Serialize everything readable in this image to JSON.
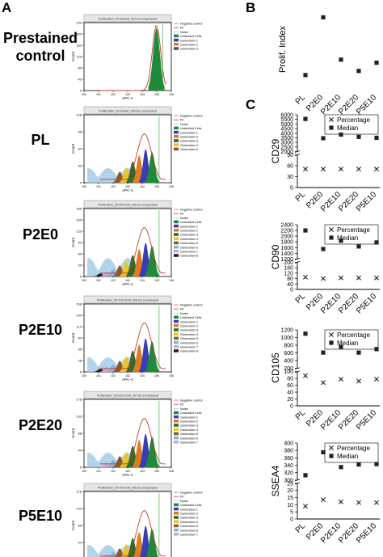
{
  "panel_letters": {
    "a": "A",
    "b": "B",
    "c": "C"
  },
  "row_labels": [
    "Prestained control",
    "PL",
    "P2E0",
    "P2E10",
    "P2E20",
    "P5E10"
  ],
  "flow": {
    "xlabel": "APC-A",
    "ylabel": "Count",
    "x_ticks": [
      "10^0",
      "10^1",
      "10^2",
      "10^3",
      "10^4",
      "10^5",
      "10^6"
    ],
    "histograms": [
      {
        "title": "Proliferation_Prestained_002.fcs compressed",
        "ymax": "240",
        "yticks": [
          "0",
          "40",
          "80",
          "120",
          "160",
          "200",
          "240"
        ],
        "legend": [
          "Negative control",
          "Fit",
          "Noise",
          "Undivided Cells",
          "Generation 1",
          "Generation 2",
          "Generation 3"
        ]
      },
      {
        "title": "Proliferation_D5 Plastic_009.fcs compressed",
        "ymax": "128",
        "yticks": [
          "0",
          "32",
          "64",
          "96",
          "128"
        ],
        "legend": [
          "Negative control",
          "Fit",
          "Noise",
          "Undivided Cells",
          "Generation 1",
          "Generation 2",
          "Generation 3",
          "Generation 4",
          "Generation 5"
        ]
      },
      {
        "title": "Proliferation_D6 D0 ECM_006.fcs compressed",
        "ymax": "180",
        "yticks": [
          "0",
          "30",
          "60",
          "90",
          "120",
          "150",
          "180"
        ],
        "legend": [
          "Negative control",
          "Fit",
          "Noise",
          "Undivided Cells",
          "Generation 1",
          "Generation 2",
          "Generation 3",
          "Generation 4",
          "Generation 5",
          "Generation 6",
          "Generation 7",
          "Generation 8"
        ]
      },
      {
        "title": "Proliferation_D5 D10 ECM_008.fcs compressed",
        "ymax": "168",
        "yticks": [
          "0",
          "28",
          "56",
          "84",
          "112",
          "140",
          "168"
        ],
        "legend": [
          "Negative control",
          "Fit",
          "Noise",
          "Undivided Cells",
          "Generation 1",
          "Generation 2",
          "Generation 3",
          "Generation 4",
          "Generation 5",
          "Generation 6",
          "Generation 7",
          "Generation 8"
        ]
      },
      {
        "title": "Proliferation_D5 D20 ECM_007.fcs compressed",
        "ymax": "176",
        "yticks": [
          "0",
          "44",
          "88",
          "132",
          "176"
        ],
        "legend": [
          "Negative control",
          "Fit",
          "Noise",
          "Undivided Cells",
          "Generation 1",
          "Generation 2",
          "Generation 3",
          "Generation 4",
          "Generation 5",
          "Generation 6",
          "Generation 7"
        ]
      },
      {
        "title": "Proliferation_D5 P5 ECM_006.fcs compressed",
        "ymax": "176",
        "yticks": [
          "0",
          "44",
          "88",
          "132",
          "176"
        ],
        "legend": [
          "Negative control",
          "Fit",
          "Noise",
          "Undivided Cells",
          "Generation 1",
          "Generation 2",
          "Generation 3",
          "Generation 4",
          "Generation 5",
          "Generation 6",
          "Generation 7"
        ]
      }
    ]
  },
  "colors": {
    "undivided": "#1e8a3a",
    "gen1": "#3b3bb5",
    "gen2": "#e07b20",
    "gen3": "#2e6b2e",
    "gen4": "#e8c42a",
    "gen5": "#8b5a2b",
    "gen6": "#7fb6d9",
    "gen7": "#c9a6d8",
    "gen8": "#222222",
    "noise": "#9ec9e6",
    "fit": "#c0392b",
    "negative": "#d46a6a",
    "marker": "#2ca02c"
  },
  "chart_data": [
    {
      "type": "scatter",
      "ylabel": "Prolif. Index",
      "categories": [
        "PL",
        "P2E0",
        "P2E10",
        "P2E20",
        "P5E10"
      ],
      "series": [
        {
          "values": [
            4.55,
            7.35,
            5.3,
            4.75,
            5.15
          ]
        }
      ],
      "marker": "square",
      "show_axes": false
    },
    {
      "type": "scatter",
      "ylabel": "CD29",
      "categories": [
        "PL",
        "P2E0",
        "P2E10",
        "P2E20",
        "P5E10"
      ],
      "yticks": [
        "0",
        "30",
        "60",
        "90",
        "2000",
        "2500",
        "3000",
        "3500",
        "4000",
        "4500",
        "5000",
        "5500",
        "6000"
      ],
      "series": [
        {
          "name": "Percentage",
          "marker": "x",
          "values": [
            96,
            95,
            95,
            96,
            95
          ]
        },
        {
          "name": "Median",
          "marker": "square",
          "values": [
            5550,
            3450,
            3850,
            3600,
            3500
          ]
        }
      ]
    },
    {
      "type": "scatter",
      "ylabel": "CD90",
      "categories": [
        "PL",
        "P2E0",
        "P2E10",
        "P2E20",
        "P5E10"
      ],
      "yticks": [
        "0",
        "40",
        "80",
        "120",
        "160",
        "200",
        "1200",
        "1400",
        "1600",
        "1800",
        "2000",
        "2200",
        "2400"
      ],
      "series": [
        {
          "name": "Percentage",
          "marker": "x",
          "values": [
            90,
            80,
            85,
            85,
            85
          ]
        },
        {
          "name": "Median",
          "marker": "square",
          "values": [
            2200,
            1550,
            1840,
            1640,
            1780
          ]
        }
      ]
    },
    {
      "type": "scatter",
      "ylabel": "CD105",
      "categories": [
        "PL",
        "P2E0",
        "P2E10",
        "P2E20",
        "P5E10"
      ],
      "yticks": [
        "0",
        "20",
        "40",
        "60",
        "80",
        "100",
        "200",
        "400",
        "600",
        "800",
        "1000",
        "1200"
      ],
      "series": [
        {
          "name": "Percentage",
          "marker": "x",
          "values": [
            88,
            68,
            78,
            72,
            78
          ]
        },
        {
          "name": "Median",
          "marker": "square",
          "values": [
            1100,
            610,
            760,
            610,
            700
          ]
        }
      ]
    },
    {
      "type": "scatter",
      "ylabel": "SSEA4",
      "categories": [
        "PL",
        "P2E0",
        "P2E10",
        "P2E20",
        "P5E10"
      ],
      "yticks": [
        "0",
        "5",
        "10",
        "15",
        "20",
        "25",
        "300",
        "320",
        "340",
        "360",
        "380",
        "400"
      ],
      "series": [
        {
          "name": "Percentage",
          "marker": "x",
          "values": [
            9,
            13.5,
            12,
            11.5,
            11.5
          ]
        },
        {
          "name": "Median",
          "marker": "square",
          "values": [
            313,
            375,
            335,
            342,
            343
          ]
        }
      ]
    }
  ]
}
